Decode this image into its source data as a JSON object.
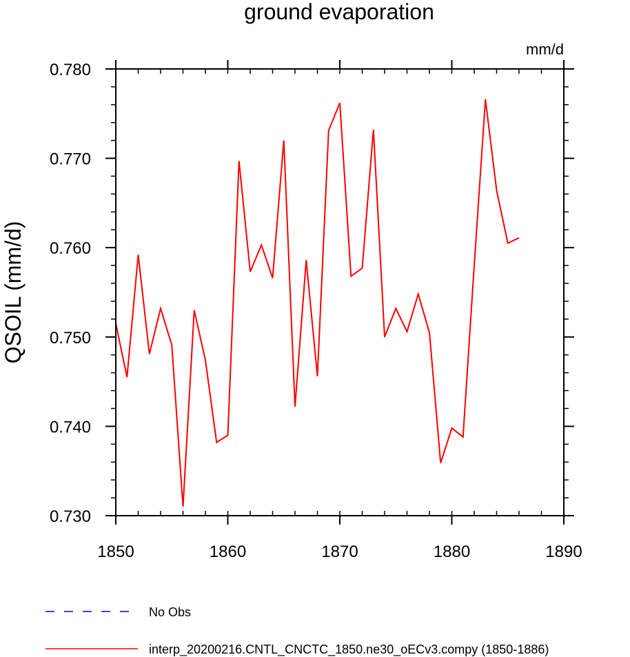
{
  "chart_data": {
    "type": "line",
    "title": "ground evaporation",
    "units": "mm/d",
    "ylabel": "QSOIL  (mm/d)",
    "xlabel": "",
    "xlim": [
      1850,
      1890
    ],
    "ylim": [
      0.73,
      0.78
    ],
    "x_ticks": [
      "1850",
      "1860",
      "1870",
      "1880",
      "1890"
    ],
    "y_ticks": [
      "0.730",
      "0.740",
      "0.750",
      "0.760",
      "0.770",
      "0.780"
    ],
    "grid": false,
    "legend_position": "bottom-left",
    "legend": [
      {
        "label": "No Obs",
        "color": "#0000ff",
        "style": "dashed"
      },
      {
        "label": "interp_20200216.CNTL_CNCTC_1850.ne30_oECv3.compy (1850-1886)",
        "color": "#ff0000",
        "style": "solid"
      }
    ],
    "series": [
      {
        "name": "interp_20200216.CNTL_CNCTC_1850.ne30_oECv3.compy (1850-1886)",
        "color": "#ff0000",
        "x": [
          1850,
          1851,
          1852,
          1853,
          1854,
          1855,
          1856,
          1857,
          1858,
          1859,
          1860,
          1861,
          1862,
          1863,
          1864,
          1865,
          1866,
          1867,
          1868,
          1869,
          1870,
          1871,
          1872,
          1873,
          1874,
          1875,
          1876,
          1877,
          1878,
          1879,
          1880,
          1881,
          1882,
          1883,
          1884,
          1885,
          1886
        ],
        "values": [
          0.7515,
          0.7455,
          0.7592,
          0.7481,
          0.7532,
          0.7491,
          0.731,
          0.753,
          0.7474,
          0.7382,
          0.739,
          0.7697,
          0.7573,
          0.7603,
          0.7566,
          0.772,
          0.7422,
          0.7586,
          0.7456,
          0.7731,
          0.7762,
          0.7568,
          0.7577,
          0.7732,
          0.75,
          0.7532,
          0.7506,
          0.7548,
          0.7505,
          0.7359,
          0.7398,
          0.7388,
          0.758,
          0.7766,
          0.7664,
          0.7605,
          0.7611
        ]
      }
    ]
  }
}
